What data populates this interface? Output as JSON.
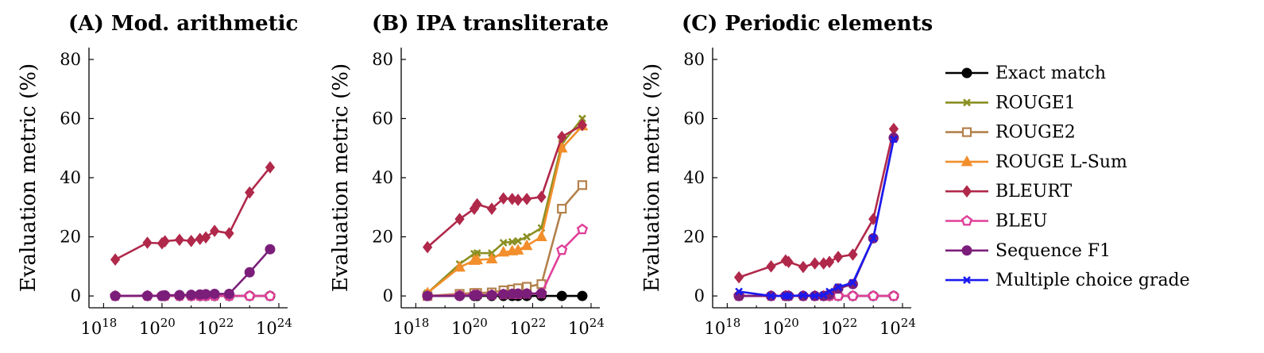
{
  "chart_data": [
    {
      "type": "line",
      "title": "(A) Mod. arithmetic",
      "xlabel": "",
      "ylabel": "Evaluation metric (%)",
      "xscale": "log",
      "xlim_exp": [
        17.5,
        24.3
      ],
      "ylim": [
        -4,
        84
      ],
      "yticks": [
        0,
        20,
        40,
        60,
        80
      ],
      "xtick_exponents": [
        18,
        20,
        22,
        24
      ],
      "grid": false,
      "series": [
        {
          "name": "Exact match",
          "x_exp": [
            18.4,
            19.5,
            20.0,
            20.1,
            20.6,
            21.0,
            21.3,
            21.5,
            21.8,
            22.3,
            23.0,
            23.7
          ],
          "y": [
            0,
            0,
            0,
            0,
            0,
            0,
            0,
            0,
            0,
            0,
            0,
            0
          ]
        },
        {
          "name": "BLEURT",
          "x_exp": [
            18.4,
            19.5,
            20.0,
            20.1,
            20.6,
            21.0,
            21.3,
            21.5,
            21.8,
            22.3,
            23.0,
            23.7
          ],
          "y": [
            12.3,
            18.0,
            17.8,
            18.5,
            19.0,
            18.6,
            19.3,
            19.8,
            22.0,
            21.2,
            35.0,
            43.5
          ]
        },
        {
          "name": "BLEU",
          "x_exp": [
            18.4,
            19.5,
            20.0,
            20.1,
            20.6,
            21.0,
            21.3,
            21.5,
            21.8,
            22.3,
            23.0,
            23.7
          ],
          "y": [
            0,
            0,
            0,
            0,
            0,
            0,
            0,
            0,
            0,
            0,
            0,
            0
          ]
        },
        {
          "name": "Sequence F1",
          "x_exp": [
            18.4,
            19.5,
            20.0,
            20.1,
            20.6,
            21.0,
            21.3,
            21.5,
            21.8,
            22.3,
            23.0,
            23.7
          ],
          "y": [
            0,
            0.1,
            0,
            0.2,
            0.3,
            0.4,
            0.5,
            0.6,
            0.7,
            0.7,
            8.0,
            15.8
          ]
        }
      ]
    },
    {
      "type": "line",
      "title": "(B) IPA transliterate",
      "xlabel": "",
      "ylabel": "Evaluation metric (%)",
      "xscale": "log",
      "xlim_exp": [
        17.5,
        24.3
      ],
      "ylim": [
        -4,
        84
      ],
      "yticks": [
        0,
        20,
        40,
        60,
        80
      ],
      "xtick_exponents": [
        18,
        20,
        22,
        24
      ],
      "grid": false,
      "series": [
        {
          "name": "Exact match",
          "x_exp": [
            18.4,
            19.5,
            20.0,
            20.1,
            20.6,
            21.0,
            21.3,
            21.5,
            21.8,
            22.3,
            23.0,
            23.7
          ],
          "y": [
            0,
            0,
            0,
            0,
            0,
            0,
            0,
            0,
            0,
            0,
            0,
            0
          ]
        },
        {
          "name": "ROUGE1",
          "x_exp": [
            18.4,
            19.5,
            20.0,
            20.1,
            20.6,
            21.0,
            21.3,
            21.5,
            21.8,
            22.3,
            23.0,
            23.7
          ],
          "y": [
            1.0,
            10.8,
            14.3,
            14.5,
            14.5,
            18.0,
            18.3,
            18.6,
            20.0,
            23.0,
            51.5,
            60.0
          ]
        },
        {
          "name": "ROUGE2",
          "x_exp": [
            18.4,
            19.5,
            20.0,
            20.1,
            20.6,
            21.0,
            21.3,
            21.5,
            21.8,
            22.3,
            23.0,
            23.7
          ],
          "y": [
            0,
            0.7,
            1.0,
            1.0,
            1.2,
            1.9,
            2.2,
            2.6,
            3.1,
            4.0,
            29.5,
            37.5
          ]
        },
        {
          "name": "ROUGE L-Sum",
          "x_exp": [
            18.4,
            19.5,
            20.0,
            20.1,
            20.6,
            21.0,
            21.3,
            21.5,
            21.8,
            22.3,
            23.0,
            23.7
          ],
          "y": [
            1.0,
            9.7,
            12.0,
            12.2,
            12.5,
            14.8,
            15.2,
            15.5,
            17.0,
            20.0,
            50.0,
            57.5
          ]
        },
        {
          "name": "BLEURT",
          "x_exp": [
            18.4,
            19.5,
            20.0,
            20.1,
            20.6,
            21.0,
            21.3,
            21.5,
            21.8,
            22.3,
            23.0,
            23.7
          ],
          "y": [
            16.5,
            26.0,
            29.5,
            31.0,
            29.5,
            33.0,
            32.8,
            32.5,
            32.8,
            33.5,
            53.8,
            57.8
          ]
        },
        {
          "name": "BLEU",
          "x_exp": [
            18.4,
            19.5,
            20.0,
            20.1,
            20.6,
            21.0,
            21.3,
            21.5,
            21.8,
            22.3,
            23.0,
            23.7
          ],
          "y": [
            0,
            0.2,
            0.3,
            0.3,
            0.3,
            0.5,
            0.6,
            0.6,
            0.7,
            0.8,
            15.5,
            22.5
          ]
        },
        {
          "name": "Sequence F1",
          "x_exp": [
            18.4,
            19.5,
            20.0,
            20.1,
            20.6,
            21.0,
            21.3,
            21.5,
            21.8,
            22.3
          ],
          "y": [
            0,
            0,
            0.2,
            0.3,
            0.3,
            0.6,
            0.7,
            0.8,
            0.8,
            0.9
          ]
        }
      ]
    },
    {
      "type": "line",
      "title": "(C) Periodic elements",
      "xlabel": "",
      "ylabel": "Evaluation metric (%)",
      "xscale": "log",
      "xlim_exp": [
        17.5,
        24.3
      ],
      "ylim": [
        -4,
        84
      ],
      "yticks": [
        0,
        20,
        40,
        60,
        80
      ],
      "xtick_exponents": [
        18,
        20,
        22,
        24
      ],
      "grid": false,
      "series": [
        {
          "name": "Exact match",
          "x_exp": [
            18.4,
            19.5,
            20.0,
            20.1,
            20.6,
            21.0,
            21.3,
            21.5,
            21.8,
            22.3,
            23.0,
            23.7
          ],
          "y": [
            0,
            0,
            0,
            0,
            0,
            0,
            0,
            0,
            0,
            0,
            0,
            0
          ]
        },
        {
          "name": "BLEURT",
          "x_exp": [
            18.4,
            19.5,
            20.0,
            20.1,
            20.6,
            21.0,
            21.3,
            21.5,
            21.8,
            22.3,
            23.0,
            23.7
          ],
          "y": [
            6.3,
            10.0,
            12.0,
            11.5,
            9.8,
            11.0,
            11.0,
            11.5,
            13.2,
            14.0,
            26.0,
            56.5
          ]
        },
        {
          "name": "BLEU",
          "x_exp": [
            18.4,
            19.5,
            20.0,
            20.1,
            20.6,
            21.0,
            21.3,
            21.5,
            21.8,
            22.3,
            23.0,
            23.7
          ],
          "y": [
            0,
            0,
            0,
            0,
            0,
            0,
            0,
            0,
            0,
            0,
            0,
            0
          ]
        },
        {
          "name": "Sequence F1",
          "x_exp": [
            18.4,
            19.5,
            20.0,
            20.1,
            20.6,
            21.0,
            21.3,
            21.5,
            21.8,
            22.3,
            23.0,
            23.7
          ],
          "y": [
            0,
            0,
            0,
            0,
            0,
            0,
            0,
            0.5,
            2.5,
            4.0,
            19.5,
            53.5
          ]
        },
        {
          "name": "Multiple choice grade",
          "x_exp": [
            18.4,
            19.5,
            20.0,
            20.1,
            20.6,
            21.0,
            21.3,
            21.5,
            21.8,
            22.3,
            23.0,
            23.7
          ],
          "y": [
            1.5,
            0,
            0,
            0,
            0.2,
            0,
            0.3,
            1.5,
            3.0,
            4.5,
            19.5,
            53.0
          ]
        }
      ]
    }
  ],
  "legend": {
    "position": "right",
    "entries": [
      {
        "name": "Exact match",
        "color": "#000000",
        "marker": "circle"
      },
      {
        "name": "ROUGE1",
        "color": "#8a8f22",
        "marker": "x"
      },
      {
        "name": "ROUGE2",
        "color": "#b3814c",
        "marker": "square"
      },
      {
        "name": "ROUGE L-Sum",
        "color": "#f28e2b",
        "marker": "triangle"
      },
      {
        "name": "BLEURT",
        "color": "#b0284a",
        "marker": "diamond"
      },
      {
        "name": "BLEU",
        "color": "#e0409a",
        "marker": "pentagon"
      },
      {
        "name": "Sequence F1",
        "color": "#7b1e7a",
        "marker": "circle"
      },
      {
        "name": "Multiple choice grade",
        "color": "#1a1af0",
        "marker": "x"
      }
    ]
  }
}
